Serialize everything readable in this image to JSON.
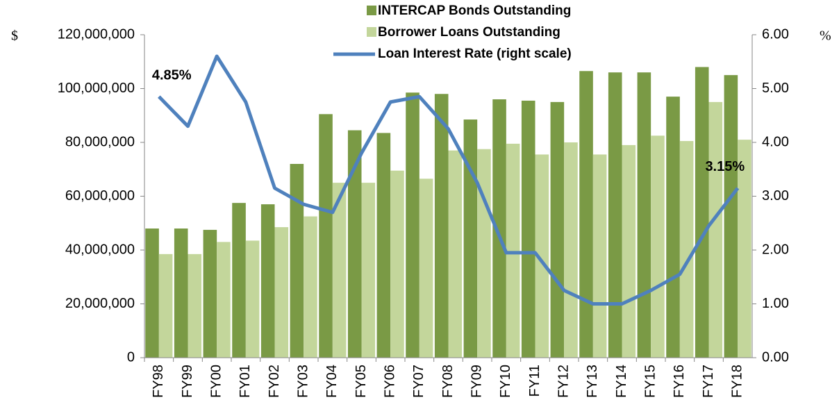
{
  "chart_data": {
    "type": "bar",
    "categories": [
      "FY98",
      "FY99",
      "FY00",
      "FY01",
      "FY02",
      "FY03",
      "FY04",
      "FY05",
      "FY06",
      "FY07",
      "FY08",
      "FY09",
      "FY10",
      "FY11",
      "FY12",
      "FY13",
      "FY14",
      "FY15",
      "FY16",
      "FY17",
      "FY18"
    ],
    "series": [
      {
        "name": "INTERCAP Bonds Outstanding",
        "color": "#7a9a45",
        "type": "bar",
        "values": [
          48000000,
          48000000,
          47500000,
          57500000,
          57000000,
          72000000,
          90500000,
          84500000,
          83500000,
          98500000,
          98000000,
          88500000,
          96000000,
          95500000,
          95000000,
          106500000,
          106000000,
          106000000,
          97000000,
          108000000,
          105000000
        ]
      },
      {
        "name": "Borrower Loans Outstanding",
        "color": "#c3d69b",
        "type": "bar",
        "values": [
          38500000,
          38500000,
          43000000,
          43500000,
          48500000,
          52500000,
          65000000,
          65000000,
          69500000,
          66500000,
          77000000,
          77500000,
          79500000,
          75500000,
          80000000,
          75500000,
          79000000,
          82500000,
          80500000,
          95000000,
          81000000
        ]
      },
      {
        "name": "Loan Interest Rate (right scale)",
        "color": "#4f81bd",
        "type": "line",
        "axis": "y2",
        "values": [
          4.85,
          4.3,
          5.6,
          4.75,
          3.15,
          2.85,
          2.7,
          3.8,
          4.75,
          4.85,
          4.25,
          3.25,
          1.95,
          1.95,
          1.25,
          1.0,
          1.0,
          1.25,
          1.55,
          2.45,
          3.15
        ],
        "value_labels": [
          "4.85%",
          null,
          null,
          null,
          null,
          null,
          null,
          null,
          null,
          null,
          null,
          null,
          null,
          null,
          null,
          null,
          null,
          null,
          null,
          null,
          "3.15%"
        ]
      }
    ],
    "ylabel": "$",
    "y2label": "%",
    "ylim": [
      0,
      120000000
    ],
    "yticks": [
      0,
      {
        "value": 20000000,
        "label": "20,000,000"
      },
      {
        "value": 40000000,
        "label": "40,000,000"
      },
      {
        "value": 60000000,
        "label": "60,000,000"
      },
      {
        "value": 80000000,
        "label": "80,000,000"
      },
      {
        "value": 100000000,
        "label": "100,000,000"
      },
      {
        "value": 120000000,
        "label": "120,000,000"
      }
    ],
    "y2lim": [
      0,
      6
    ],
    "y2ticks": [
      {
        "value": 0,
        "label": "0.00"
      },
      {
        "value": 1,
        "label": "1.00"
      },
      {
        "value": 2,
        "label": "2.00"
      },
      {
        "value": 3,
        "label": "3.00"
      },
      {
        "value": 4,
        "label": "4.00"
      },
      {
        "value": 5,
        "label": "5.00"
      },
      {
        "value": 6,
        "label": "6.00"
      }
    ],
    "grid": false,
    "legend": "top"
  }
}
